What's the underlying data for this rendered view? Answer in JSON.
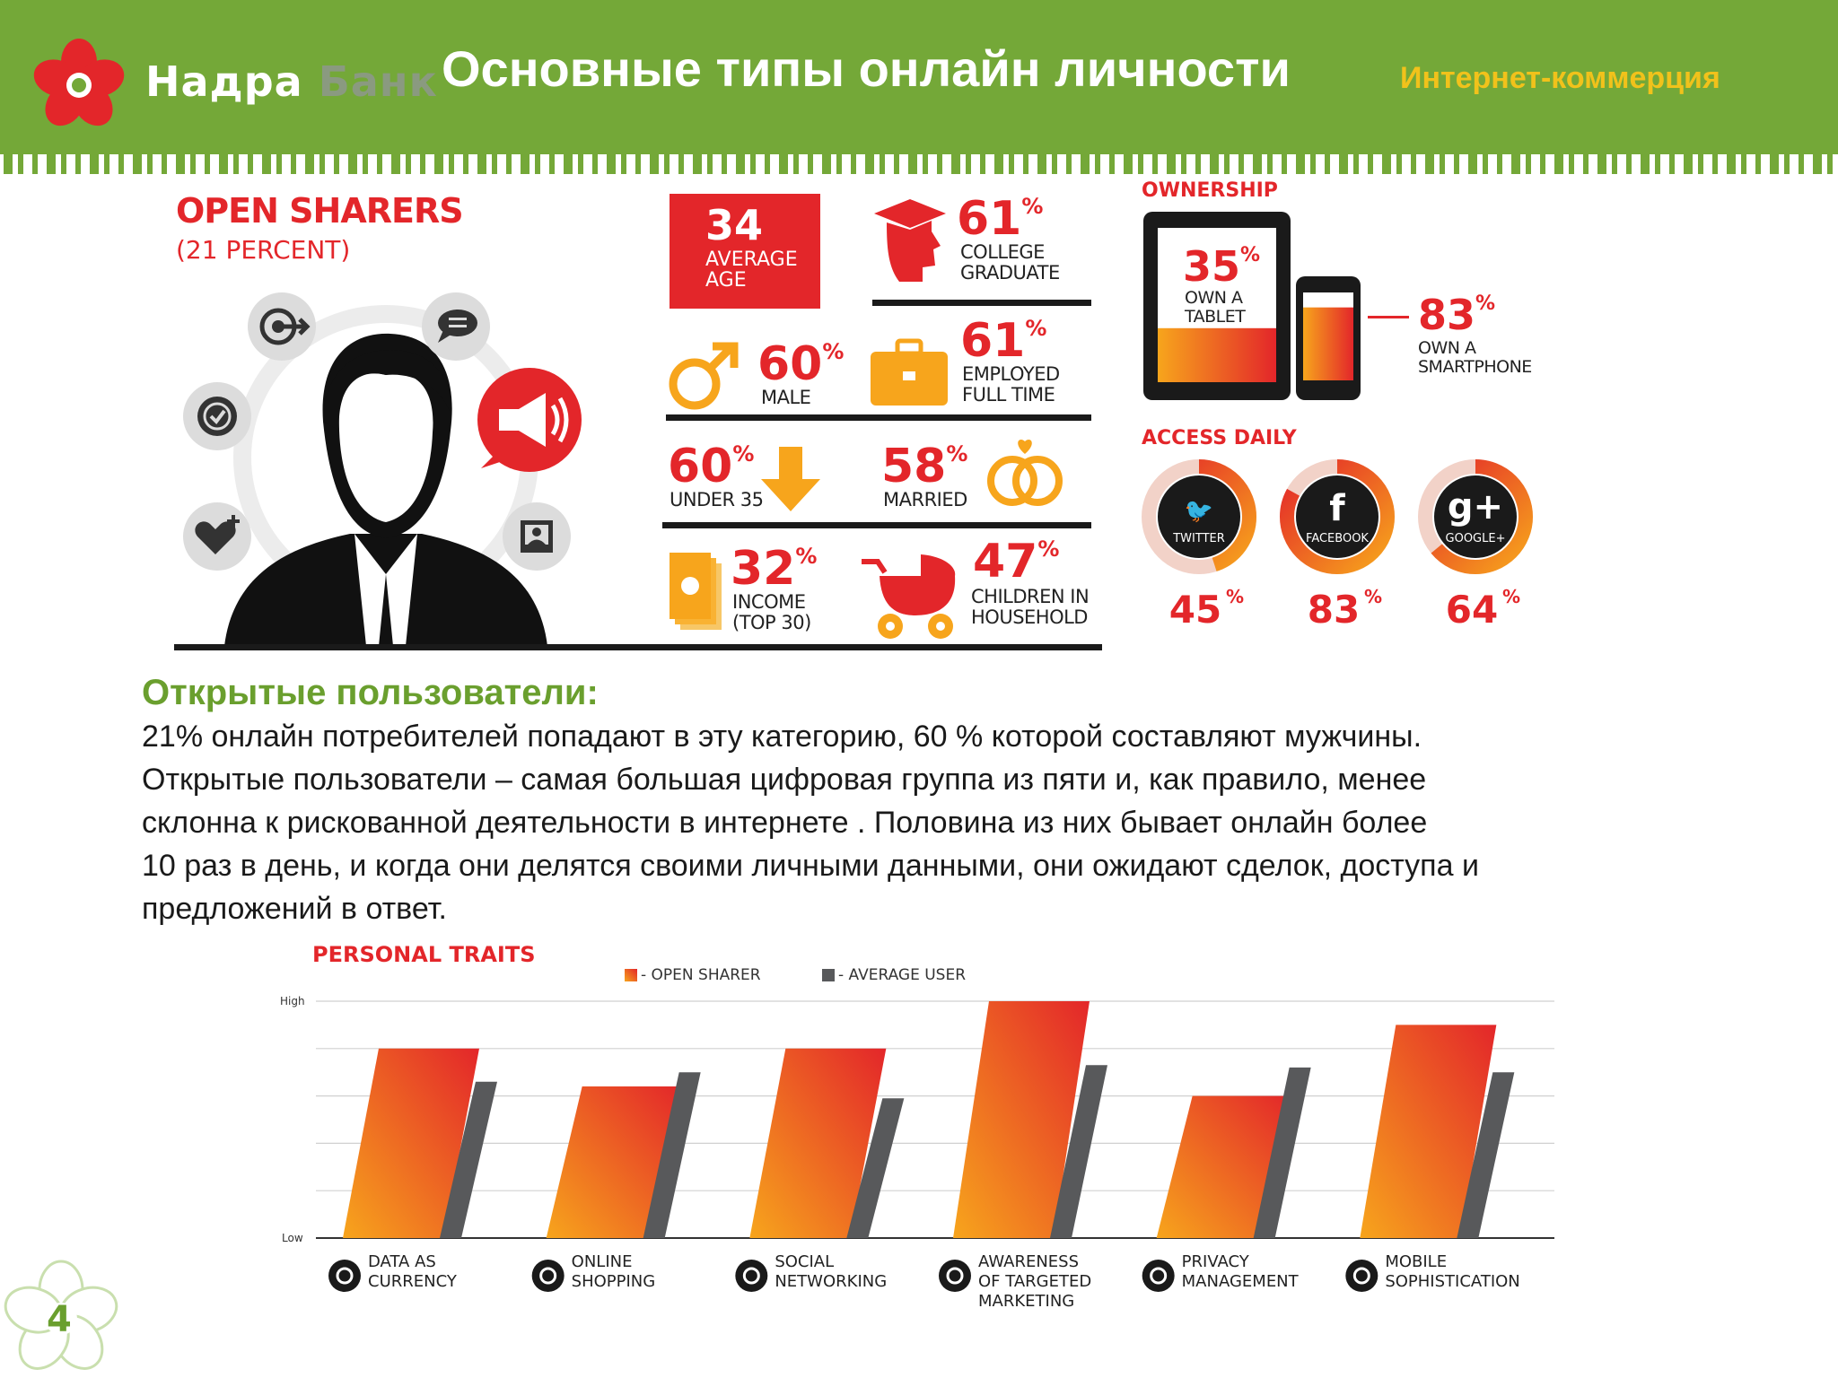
{
  "header": {
    "logo_word1": "Надра",
    "logo_word2": "Банк",
    "title": "Основные типы онлайн личности",
    "section": "Интернет-коммерция"
  },
  "colors": {
    "header_green": "#74a838",
    "accent_red": "#e3262a",
    "accent_orange": "#f7a51c",
    "title_yellow": "#f1c21b",
    "text_green": "#6a9f2e"
  },
  "persona": {
    "title": "OPEN SHARERS",
    "subtitle": "(21 PERCENT)",
    "icons": [
      "target-icon",
      "chat-bubble-icon",
      "badge-icon",
      "megaphone-icon",
      "heart-plus-icon",
      "photo-icon"
    ]
  },
  "stats": {
    "age": {
      "value": "34",
      "label1": "AVERAGE",
      "label2": "AGE"
    },
    "college": {
      "value": "61",
      "pct": "%",
      "label1": "COLLEGE",
      "label2": "GRADUATE"
    },
    "male": {
      "value": "60",
      "pct": "%",
      "label1": "MALE"
    },
    "employed": {
      "value": "61",
      "pct": "%",
      "label1": "EMPLOYED",
      "label2": "FULL TIME"
    },
    "under35": {
      "value": "60",
      "pct": "%",
      "label1": "UNDER 35"
    },
    "married": {
      "value": "58",
      "pct": "%",
      "label1": "MARRIED"
    },
    "income": {
      "value": "32",
      "pct": "%",
      "label1": "INCOME",
      "label2": "(TOP 30)"
    },
    "children": {
      "value": "47",
      "pct": "%",
      "label1": "CHILDREN IN",
      "label2": "HOUSEHOLD"
    }
  },
  "ownership": {
    "title": "OWNERSHIP",
    "tablet": {
      "value": "35",
      "pct": "%",
      "label1": "OWN A",
      "label2": "TABLET",
      "fraction": 0.35
    },
    "smartphone": {
      "value": "83",
      "pct": "%",
      "label1": "OWN A",
      "label2": "SMARTPHONE",
      "fraction": 0.83
    }
  },
  "access_daily": {
    "title": "ACCESS DAILY",
    "items": [
      {
        "name": "TWITTER",
        "value": "45",
        "pct": "%",
        "fraction": 0.45,
        "icon": "twitter-icon"
      },
      {
        "name": "FACEBOOK",
        "value": "83",
        "pct": "%",
        "fraction": 0.83,
        "icon": "facebook-icon"
      },
      {
        "name": "GOOGLE+",
        "value": "64",
        "pct": "%",
        "fraction": 0.64,
        "icon": "google-plus-icon"
      }
    ]
  },
  "body": {
    "heading": "Открытые пользователи:",
    "lines": [
      "21% онлайн потребителей попадают в эту категорию, 60 % которой составляют мужчины.",
      "Открытые пользователи – самая большая цифровая группа из пяти и, как правило, менее",
      "склонна к рискованной деятельности в интернете . Половина из них бывает онлайн более",
      "10 раз в день, и когда они делятся своими личными данными, они ожидают сделок, доступа и",
      "предложений в ответ."
    ]
  },
  "chart_data": {
    "type": "bar",
    "title": "PERSONAL TRAITS",
    "ytick_labels": [
      "High",
      "Low"
    ],
    "ylim": [
      0,
      1
    ],
    "grid": true,
    "legend_position": "top",
    "legend_suffix": "-",
    "categories": [
      {
        "lines": [
          "DATA AS",
          "CURRENCY"
        ],
        "icon": "data-currency-icon"
      },
      {
        "lines": [
          "ONLINE",
          "SHOPPING"
        ],
        "icon": "online-shopping-icon"
      },
      {
        "lines": [
          "SOCIAL",
          "NETWORKING"
        ],
        "icon": "social-networking-icon"
      },
      {
        "lines": [
          "AWARENESS",
          "OF TARGETED",
          "MARKETING"
        ],
        "icon": "targeted-marketing-icon"
      },
      {
        "lines": [
          "PRIVACY",
          "MANAGEMENT"
        ],
        "icon": "privacy-management-icon"
      },
      {
        "lines": [
          "MOBILE",
          "SOPHISTICATION"
        ],
        "icon": "mobile-sophistication-icon"
      }
    ],
    "series": [
      {
        "name": "OPEN SHARER",
        "values": [
          0.8,
          0.64,
          0.8,
          1.0,
          0.6,
          0.9
        ],
        "color": "#f04e23"
      },
      {
        "name": "AVERAGE USER",
        "values": [
          0.66,
          0.7,
          0.59,
          0.73,
          0.72,
          0.7
        ],
        "color": "#58595b"
      }
    ]
  },
  "page_number": "4"
}
